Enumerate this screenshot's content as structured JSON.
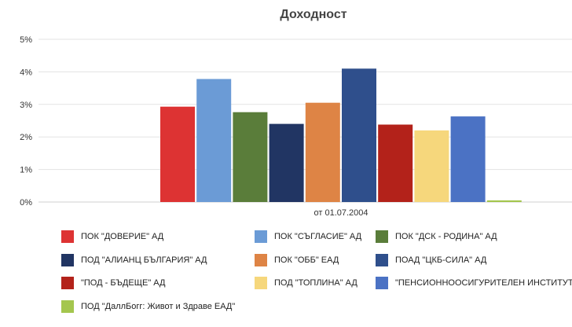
{
  "chart_data": {
    "type": "bar",
    "title": "Доходност",
    "categories": [
      "от 01.07.2004"
    ],
    "xlabel": "",
    "ylabel": "",
    "ylim": [
      0,
      5
    ],
    "yticks": [
      "0%",
      "1%",
      "2%",
      "3%",
      "4%",
      "5%"
    ],
    "grid": true,
    "legend_position": "bottom",
    "series": [
      {
        "name": "ПОК \"ДОВЕРИЕ\" АД",
        "values": [
          2.93
        ],
        "color": "#dd3333"
      },
      {
        "name": "ПОК \"СЪГЛАСИЕ\" АД",
        "values": [
          3.78
        ],
        "color": "#6b9bd6"
      },
      {
        "name": "ПОК \"ДСК - РОДИНА\" АД",
        "values": [
          2.76
        ],
        "color": "#5a7d3a"
      },
      {
        "name": "ПОД \"АЛИАНЦ БЪЛГАРИЯ\" АД",
        "values": [
          2.4
        ],
        "color": "#213563"
      },
      {
        "name": "ПОК \"ОББ\" ЕАД",
        "values": [
          3.05
        ],
        "color": "#de8445"
      },
      {
        "name": "ПОАД \"ЦКБ-СИЛА\" АД",
        "values": [
          4.1
        ],
        "color": "#2f4f8c"
      },
      {
        "name": "\"ПОД - БЪДЕЩЕ\" АД",
        "values": [
          2.38
        ],
        "color": "#b3221a"
      },
      {
        "name": "ПОД \"ТОПЛИНА\" АД",
        "values": [
          2.2
        ],
        "color": "#f6d77c"
      },
      {
        "name": "\"ПЕНСИОННООСИГУРИТЕЛЕН ИНСТИТУТ\" АД",
        "values": [
          2.63
        ],
        "color": "#4b72c4"
      },
      {
        "name": "ПОД \"ДаллБогг: Живот и Здраве ЕАД\"",
        "values": [
          0.05
        ],
        "color": "#a4c64e"
      }
    ]
  }
}
